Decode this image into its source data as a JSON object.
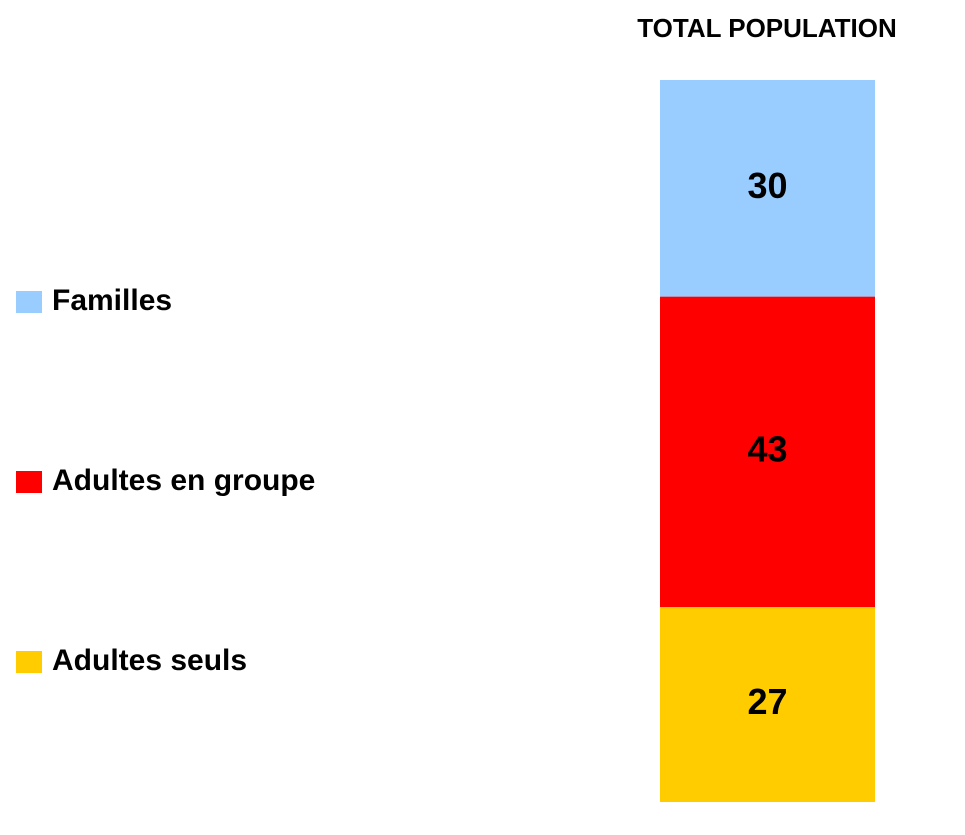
{
  "chart_data": {
    "type": "stacked_bar",
    "categories": [
      "TOTAL POPULATION"
    ],
    "series": [
      {
        "name": "Familles",
        "color": "#99ccff",
        "values": [
          30
        ]
      },
      {
        "name": "Adultes en groupe",
        "color": "#ff0000",
        "values": [
          43
        ]
      },
      {
        "name": "Adultes seuls",
        "color": "#ffcc00",
        "values": [
          27
        ]
      }
    ],
    "legend": "left"
  }
}
